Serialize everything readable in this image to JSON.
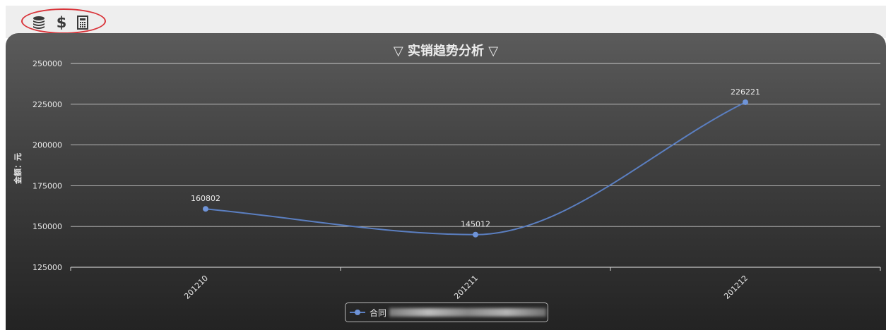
{
  "toolbar": {
    "icons": [
      "database-icon",
      "dollar-icon",
      "calculator-icon"
    ],
    "dollar_glyph": "$"
  },
  "colors": {
    "series": "#5b7fc1",
    "marker": "#6f94d8",
    "grid": "#d5d5d5",
    "text": "#ececec",
    "highlight_circle": "#d9343a"
  },
  "chart_data": {
    "type": "line",
    "title": "实销趋势分析",
    "title_marker": "▽",
    "ylabel": "金额：元",
    "xlabel": "",
    "categories": [
      "201210",
      "201211",
      "201212"
    ],
    "series": [
      {
        "name": "合同",
        "values": [
          160802,
          145012,
          226221
        ]
      }
    ],
    "ylim": [
      125000,
      250000
    ],
    "yticks": [
      125000,
      150000,
      175000,
      200000,
      225000,
      250000
    ],
    "grid": true,
    "smooth": true,
    "data_labels": true,
    "legend_position": "bottom-center"
  }
}
